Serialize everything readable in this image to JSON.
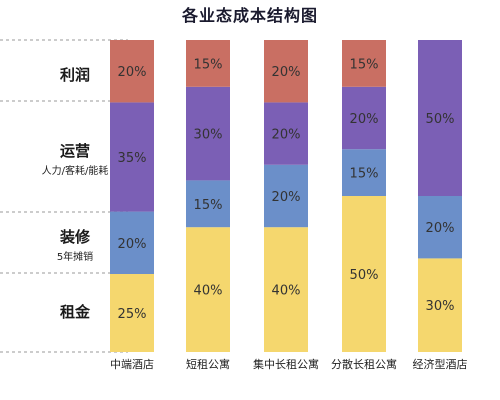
{
  "chart_data": {
    "type": "bar",
    "stacked": true,
    "percent": true,
    "title": "各业态成本结构图",
    "categories": [
      "中端酒店",
      "短租公寓",
      "集中长租公寓",
      "分散长租公寓",
      "经济型酒店"
    ],
    "series": [
      {
        "name": "租金",
        "values": [
          25,
          40,
          40,
          50,
          30
        ],
        "color": "#f5d76e"
      },
      {
        "name": "装修",
        "values": [
          20,
          15,
          20,
          15,
          20
        ],
        "color": "#6b8fc9"
      },
      {
        "name": "运营",
        "values": [
          35,
          30,
          20,
          20,
          50
        ],
        "color": "#7b5fb5"
      },
      {
        "name": "利润",
        "values": [
          20,
          15,
          20,
          15,
          0
        ],
        "color": "#c96f63"
      }
    ],
    "row_labels": [
      {
        "main": "利润",
        "sub": ""
      },
      {
        "main": "运营",
        "sub": "人力/客耗/能耗"
      },
      {
        "main": "装修",
        "sub": "5年摊销"
      },
      {
        "main": "租金",
        "sub": ""
      }
    ],
    "value_suffix": "%",
    "ylim": [
      0,
      100
    ],
    "grid": false,
    "legend": "left-side row labels"
  }
}
